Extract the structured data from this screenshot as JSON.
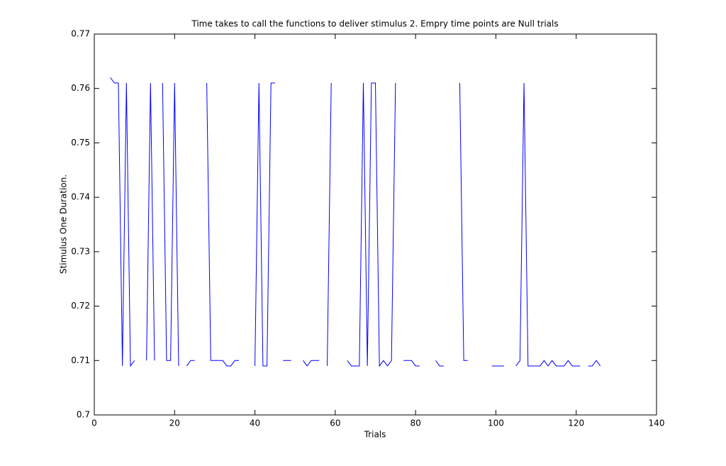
{
  "chart_data": {
    "type": "line",
    "title": "Time takes to call the functions to deliver stimulus 2. Empry time points are Null trials",
    "x_label": "Trials",
    "y_label": "Stimulus One Duration.",
    "x": [
      1,
      2,
      3,
      4,
      5,
      6,
      7,
      8,
      9,
      10,
      11,
      12,
      13,
      14,
      15,
      16,
      17,
      18,
      19,
      20,
      21,
      22,
      23,
      24,
      25,
      26,
      27,
      28,
      29,
      30,
      31,
      32,
      33,
      34,
      35,
      36,
      37,
      38,
      39,
      40,
      41,
      42,
      43,
      44,
      45,
      46,
      47,
      48,
      49,
      50,
      51,
      52,
      53,
      54,
      55,
      56,
      57,
      58,
      59,
      60,
      61,
      62,
      63,
      64,
      65,
      66,
      67,
      68,
      69,
      70,
      71,
      72,
      73,
      74,
      75,
      76,
      77,
      78,
      79,
      80,
      81,
      82,
      83,
      84,
      85,
      86,
      87,
      88,
      89,
      90,
      91,
      92,
      93,
      94,
      95,
      96,
      97,
      98,
      99,
      100,
      101,
      102,
      103,
      104,
      105,
      106,
      107,
      108,
      109,
      110,
      111,
      112,
      113,
      114,
      115,
      116,
      117,
      118,
      119,
      120,
      121,
      122,
      123,
      124,
      125,
      126
    ],
    "series": [
      {
        "name": "Duration",
        "color": "#0000ff",
        "values": [
          null,
          null,
          null,
          0.762,
          0.761,
          0.761,
          0.709,
          0.761,
          0.709,
          0.71,
          null,
          null,
          0.71,
          0.761,
          0.71,
          null,
          0.761,
          0.71,
          0.71,
          0.761,
          0.709,
          null,
          0.709,
          0.71,
          0.71,
          null,
          null,
          0.761,
          0.71,
          0.71,
          0.71,
          0.71,
          0.709,
          0.709,
          0.71,
          0.71,
          null,
          null,
          null,
          0.709,
          0.761,
          0.709,
          0.709,
          0.761,
          0.761,
          null,
          0.71,
          0.71,
          0.71,
          null,
          null,
          0.71,
          0.709,
          0.71,
          0.71,
          0.71,
          null,
          0.709,
          0.761,
          null,
          null,
          null,
          0.71,
          0.709,
          0.709,
          0.709,
          0.761,
          0.709,
          0.761,
          0.761,
          0.709,
          0.71,
          0.709,
          0.71,
          0.761,
          null,
          0.71,
          0.71,
          0.71,
          0.709,
          0.709,
          null,
          null,
          null,
          0.71,
          0.709,
          0.709,
          null,
          null,
          null,
          0.761,
          0.71,
          0.71,
          null,
          null,
          null,
          null,
          null,
          0.709,
          0.709,
          0.709,
          0.709,
          null,
          null,
          0.709,
          0.71,
          0.761,
          0.709,
          0.709,
          0.709,
          0.709,
          0.71,
          0.709,
          0.71,
          0.709,
          0.709,
          0.709,
          0.71,
          0.709,
          0.709,
          0.709,
          null,
          0.709,
          0.709,
          0.71,
          0.709
        ]
      }
    ],
    "xlim": [
      0,
      140
    ],
    "xticks": [
      0,
      20,
      40,
      60,
      80,
      100,
      120,
      140
    ],
    "ylim": [
      0.7,
      0.77
    ],
    "yticks": [
      0.7,
      0.71,
      0.72,
      0.73,
      0.74,
      0.75,
      0.76,
      0.77
    ],
    "grid": false
  }
}
